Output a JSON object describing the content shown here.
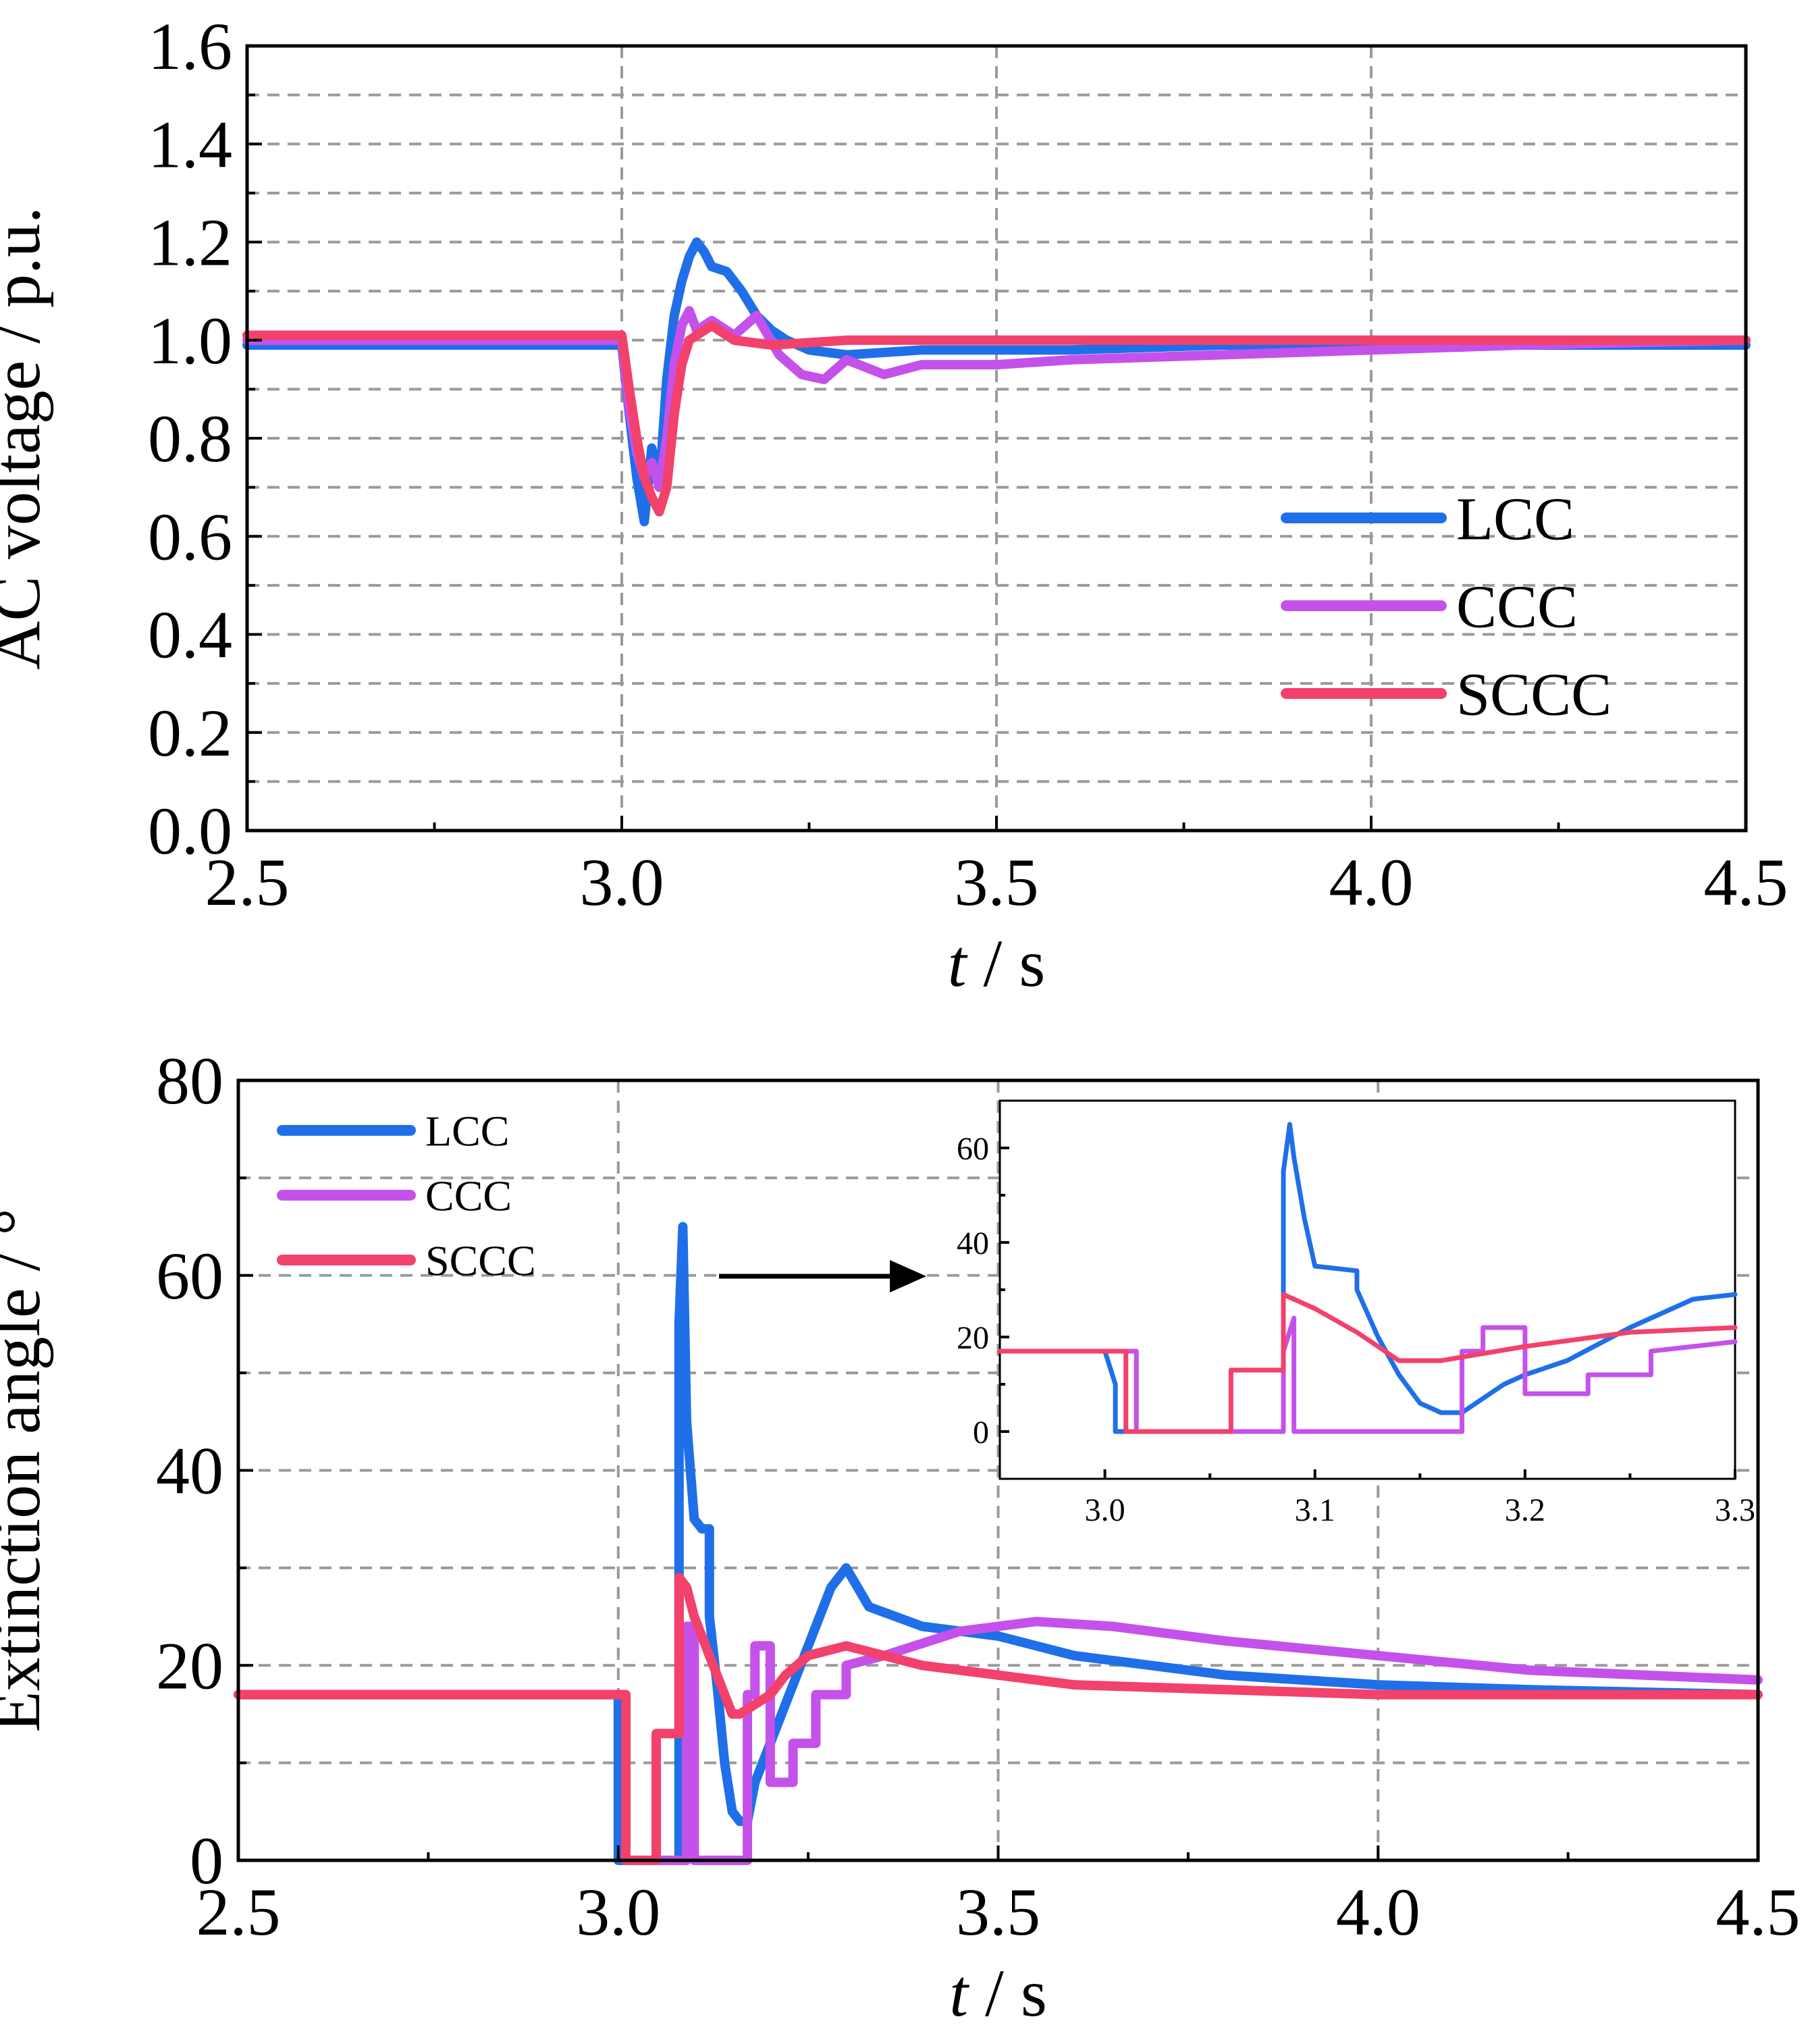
{
  "colors": {
    "LCC": "#1f6fe8",
    "CCC": "#c452ea",
    "SCCC": "#f2416b"
  },
  "chart_data": [
    {
      "type": "line",
      "ylabel": "AC voltage / p.u.",
      "xlabel_var": "t",
      "xlabel_unit": " / s",
      "xlim": [
        2.5,
        4.5
      ],
      "ylim": [
        0.0,
        1.6
      ],
      "xticks": [
        "2.5",
        "3.0",
        "3.5",
        "4.0",
        "4.5"
      ],
      "yticks": [
        "0.0",
        "0.2",
        "0.4",
        "0.6",
        "0.8",
        "1.0",
        "1.2",
        "1.4",
        "1.6"
      ],
      "grid": true,
      "legend": {
        "placement": "lower-right",
        "entries": [
          "LCC",
          "CCC",
          "SCCC"
        ]
      },
      "series": [
        {
          "name": "LCC",
          "x": [
            2.5,
            3.0,
            3.01,
            3.02,
            3.03,
            3.04,
            3.05,
            3.06,
            3.07,
            3.08,
            3.09,
            3.1,
            3.11,
            3.12,
            3.14,
            3.16,
            3.18,
            3.2,
            3.22,
            3.25,
            3.3,
            3.4,
            3.6,
            3.8,
            4.0,
            4.2,
            4.5
          ],
          "y": [
            0.99,
            0.99,
            0.85,
            0.72,
            0.63,
            0.78,
            0.7,
            0.92,
            1.05,
            1.12,
            1.17,
            1.2,
            1.18,
            1.15,
            1.14,
            1.1,
            1.05,
            1.02,
            1.0,
            0.98,
            0.97,
            0.98,
            0.98,
            0.99,
            0.99,
            0.99,
            0.99
          ]
        },
        {
          "name": "CCC",
          "x": [
            2.5,
            3.0,
            3.01,
            3.02,
            3.03,
            3.04,
            3.05,
            3.06,
            3.07,
            3.08,
            3.09,
            3.1,
            3.12,
            3.15,
            3.18,
            3.21,
            3.24,
            3.27,
            3.3,
            3.35,
            3.4,
            3.5,
            3.6,
            3.8,
            4.0,
            4.2,
            4.5
          ],
          "y": [
            1.0,
            1.0,
            0.86,
            0.77,
            0.72,
            0.75,
            0.7,
            0.8,
            0.95,
            1.03,
            1.06,
            1.02,
            1.04,
            1.01,
            1.05,
            0.97,
            0.93,
            0.92,
            0.96,
            0.93,
            0.95,
            0.95,
            0.96,
            0.97,
            0.98,
            0.99,
            1.0
          ]
        },
        {
          "name": "SCCC",
          "x": [
            2.5,
            3.0,
            3.01,
            3.02,
            3.03,
            3.04,
            3.05,
            3.06,
            3.07,
            3.08,
            3.09,
            3.1,
            3.12,
            3.15,
            3.2,
            3.3,
            3.5,
            4.0,
            4.5
          ],
          "y": [
            1.01,
            1.01,
            0.9,
            0.8,
            0.72,
            0.68,
            0.65,
            0.7,
            0.85,
            0.95,
            1.0,
            1.01,
            1.03,
            1.0,
            0.99,
            1.0,
            1.0,
            1.0,
            1.0
          ]
        }
      ]
    },
    {
      "type": "line",
      "ylabel": "Extinction angle / °",
      "xlabel_var": "t",
      "xlabel_unit": " / s",
      "xlim": [
        2.5,
        4.5
      ],
      "ylim": [
        0,
        80
      ],
      "xticks": [
        "2.5",
        "3.0",
        "3.5",
        "4.0",
        "4.5"
      ],
      "yticks": [
        "0",
        "20",
        "40",
        "60",
        "80"
      ],
      "grid": true,
      "legend": {
        "placement": "top-left",
        "entries": [
          "LCC",
          "CCC",
          "SCCC"
        ]
      },
      "series": [
        {
          "name": "LCC",
          "x": [
            2.5,
            3.0,
            3.0,
            3.08,
            3.08,
            3.085,
            3.09,
            3.1,
            3.11,
            3.12,
            3.12,
            3.13,
            3.14,
            3.15,
            3.16,
            3.17,
            3.18,
            3.19,
            3.2,
            3.22,
            3.25,
            3.28,
            3.3,
            3.33,
            3.4,
            3.5,
            3.6,
            3.8,
            4.0,
            4.2,
            4.5
          ],
          "y": [
            17,
            17,
            0,
            0,
            55,
            65,
            45,
            35,
            34,
            34,
            25,
            18,
            10,
            5,
            4,
            4,
            8,
            10,
            12,
            16,
            22,
            28,
            30,
            26,
            24,
            23,
            21,
            19,
            18,
            17.5,
            17
          ]
        },
        {
          "name": "CCC",
          "x": [
            2.5,
            3.01,
            3.01,
            3.09,
            3.09,
            3.1,
            3.1,
            3.17,
            3.17,
            3.18,
            3.18,
            3.2,
            3.2,
            3.23,
            3.23,
            3.26,
            3.26,
            3.3,
            3.3,
            3.35,
            3.45,
            3.55,
            3.65,
            3.8,
            4.0,
            4.2,
            4.5
          ],
          "y": [
            17,
            17,
            0,
            0,
            24,
            24,
            0,
            0,
            17,
            17,
            22,
            22,
            8,
            8,
            12,
            12,
            17,
            17,
            20,
            21,
            23.5,
            24.5,
            24,
            22.5,
            21,
            19.5,
            18.5
          ]
        },
        {
          "name": "SCCC",
          "x": [
            2.5,
            3.01,
            3.01,
            3.05,
            3.05,
            3.08,
            3.08,
            3.09,
            3.1,
            3.12,
            3.14,
            3.15,
            3.16,
            3.2,
            3.22,
            3.25,
            3.3,
            3.4,
            3.5,
            3.6,
            3.8,
            4.0,
            4.2,
            4.5
          ],
          "y": [
            17,
            17,
            0,
            0,
            13,
            13,
            29,
            28,
            25,
            21,
            17,
            15,
            15,
            17,
            19,
            21,
            22,
            20,
            19,
            18,
            17.5,
            17,
            17,
            17
          ]
        }
      ],
      "inset": {
        "xlim": [
          2.95,
          3.3
        ],
        "ylim": [
          -10,
          70
        ],
        "xticks": [
          "3.0",
          "3.1",
          "3.2",
          "3.3"
        ],
        "yticks": [
          "0",
          "20",
          "40",
          "60"
        ],
        "series": [
          {
            "name": "LCC",
            "x": [
              2.95,
              3.0,
              3.005,
              3.005,
              3.085,
              3.085,
              3.088,
              3.09,
              3.095,
              3.1,
              3.12,
              3.12,
              3.13,
              3.14,
              3.15,
              3.16,
              3.17,
              3.18,
              3.19,
              3.2,
              3.22,
              3.25,
              3.28,
              3.3
            ],
            "y": [
              17,
              17,
              10,
              0,
              0,
              55,
              65,
              58,
              45,
              35,
              34,
              30,
              20,
              12,
              6,
              4,
              4,
              7,
              10,
              12,
              15,
              22,
              28,
              29
            ]
          },
          {
            "name": "CCC",
            "x": [
              2.95,
              3.015,
              3.015,
              3.085,
              3.085,
              3.09,
              3.09,
              3.17,
              3.17,
              3.18,
              3.18,
              3.2,
              3.2,
              3.23,
              3.23,
              3.26,
              3.26,
              3.3
            ],
            "y": [
              17,
              17,
              0,
              0,
              17,
              24,
              0,
              0,
              17,
              17,
              22,
              22,
              8,
              8,
              12,
              12,
              17,
              19
            ]
          },
          {
            "name": "SCCC",
            "x": [
              2.95,
              3.01,
              3.01,
              3.06,
              3.06,
              3.085,
              3.085,
              3.09,
              3.1,
              3.12,
              3.14,
              3.16,
              3.2,
              3.25,
              3.3
            ],
            "y": [
              17,
              17,
              0,
              0,
              13,
              13,
              29,
              28,
              26,
              21,
              15,
              15,
              18,
              21,
              22
            ]
          }
        ]
      }
    }
  ]
}
